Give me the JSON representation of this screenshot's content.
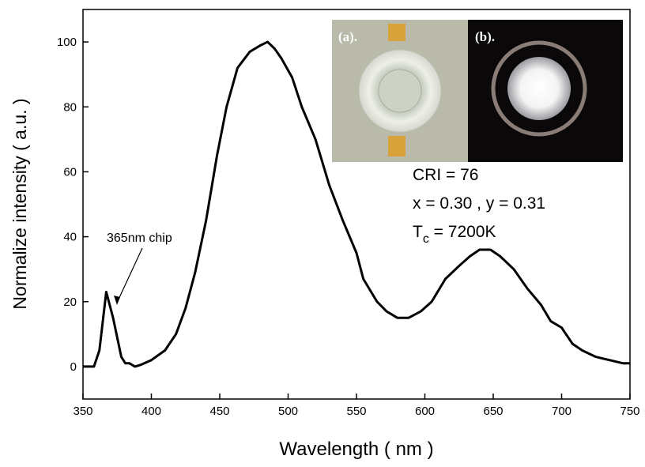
{
  "chart_data": {
    "type": "line",
    "x_label": "Wavelength ( nm )",
    "y_label": "Normalize intensity ( a.u. )",
    "x": [
      350,
      358,
      362,
      367,
      372,
      378,
      381,
      384,
      388,
      392,
      400,
      410,
      418,
      425,
      432,
      440,
      448,
      455,
      463,
      472,
      480,
      485,
      490,
      495,
      503,
      510,
      520,
      530,
      540,
      550,
      555,
      565,
      572,
      580,
      588,
      597,
      605,
      615,
      625,
      633,
      640,
      648,
      655,
      665,
      675,
      685,
      692,
      700,
      708,
      715,
      725,
      735,
      745,
      750
    ],
    "values": [
      0,
      0,
      5,
      23,
      15,
      3,
      1,
      1,
      0,
      0.5,
      2,
      5,
      10,
      18,
      29,
      45,
      65,
      80,
      92,
      97,
      99,
      100,
      98,
      95,
      89,
      80,
      70,
      56,
      45,
      35,
      27,
      20,
      17,
      15,
      15,
      17,
      20,
      27,
      31,
      34,
      36,
      36,
      34,
      30,
      24,
      19,
      14,
      12,
      7,
      5,
      3,
      2,
      1,
      1
    ],
    "color": "#000000",
    "xlim": [
      350,
      750
    ],
    "ylim": [
      -10,
      110
    ],
    "xticks": [
      350,
      400,
      450,
      500,
      550,
      600,
      650,
      700,
      750
    ],
    "yticks": [
      0,
      20,
      40,
      60,
      80,
      100
    ],
    "chip_annotation": "365nm chip",
    "inset_labels": [
      "(a).",
      "(b)."
    ],
    "cri": "CRI = 76",
    "coordinates": "x = 0.30 , y = 0.31",
    "tc": {
      "symbol": "T",
      "subscript": "c",
      "text": " = 7200K"
    }
  }
}
